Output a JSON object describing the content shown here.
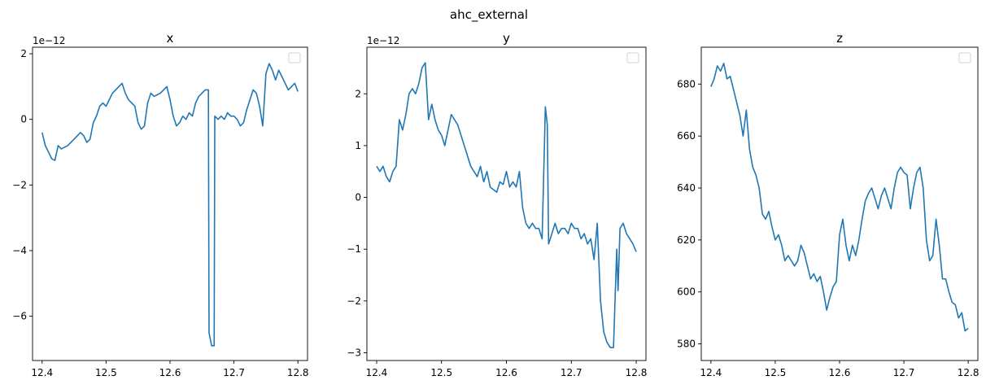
{
  "figure": {
    "suptitle": "ahc_external"
  },
  "chart_data": [
    {
      "type": "line",
      "title": "x",
      "xlabel": "",
      "ylabel": "",
      "y_offset_text": "1e−12",
      "x_ticks": [
        "12.4",
        "12.5",
        "12.6",
        "12.7",
        "12.8"
      ],
      "y_ticks": [
        "−6",
        "−4",
        "−2",
        "0",
        "2"
      ],
      "xlim": [
        12.385,
        12.815
      ],
      "ylim": [
        -7.35,
        2.2
      ],
      "legend": "top-right (empty)",
      "color": "#1f77b4",
      "series": [
        {
          "x": [
            12.4,
            12.405,
            12.41,
            12.415,
            12.42,
            12.425,
            12.43,
            12.44,
            12.45,
            12.46,
            12.465,
            12.47,
            12.475,
            12.48,
            12.485,
            12.49,
            12.495,
            12.5,
            12.505,
            12.51,
            12.515,
            12.52,
            12.525,
            12.53,
            12.535,
            12.54,
            12.545,
            12.55,
            12.555,
            12.56,
            12.565,
            12.57,
            12.575,
            12.58,
            12.585,
            12.59,
            12.595,
            12.6,
            12.605,
            12.61,
            12.615,
            12.62,
            12.625,
            12.63,
            12.635,
            12.64,
            12.645,
            12.65,
            12.655,
            12.66,
            12.661,
            12.665,
            12.669,
            12.67,
            12.675,
            12.68,
            12.685,
            12.69,
            12.695,
            12.7,
            12.705,
            12.71,
            12.715,
            12.72,
            12.725,
            12.73,
            12.735,
            12.74,
            12.745,
            12.75,
            12.755,
            12.76,
            12.765,
            12.77,
            12.775,
            12.78,
            12.785,
            12.79,
            12.795,
            12.8
          ],
          "y": [
            -0.4,
            -0.8,
            -1.0,
            -1.2,
            -1.25,
            -0.8,
            -0.9,
            -0.8,
            -0.6,
            -0.4,
            -0.5,
            -0.7,
            -0.6,
            -0.1,
            0.1,
            0.4,
            0.5,
            0.4,
            0.6,
            0.8,
            0.9,
            1.0,
            1.1,
            0.8,
            0.6,
            0.5,
            0.4,
            -0.1,
            -0.3,
            -0.2,
            0.5,
            0.8,
            0.7,
            0.75,
            0.8,
            0.9,
            1.0,
            0.6,
            0.1,
            -0.2,
            -0.1,
            0.1,
            0.0,
            0.2,
            0.1,
            0.5,
            0.7,
            0.8,
            0.9,
            0.9,
            -6.5,
            -6.9,
            -6.9,
            0.1,
            0.0,
            0.1,
            0.0,
            0.2,
            0.1,
            0.1,
            0.0,
            -0.2,
            -0.1,
            0.3,
            0.6,
            0.9,
            0.8,
            0.4,
            -0.2,
            1.4,
            1.7,
            1.5,
            1.2,
            1.5,
            1.3,
            1.1,
            0.9,
            1.0,
            1.1,
            0.85
          ]
        }
      ]
    },
    {
      "type": "line",
      "title": "y",
      "xlabel": "",
      "ylabel": "",
      "y_offset_text": "1e−12",
      "x_ticks": [
        "12.4",
        "12.5",
        "12.6",
        "12.7",
        "12.8"
      ],
      "y_ticks": [
        "−3",
        "−2",
        "−1",
        "0",
        "1",
        "2"
      ],
      "xlim": [
        12.385,
        12.815
      ],
      "ylim": [
        -3.15,
        2.9
      ],
      "legend": "top-right (empty)",
      "color": "#1f77b4",
      "series": [
        {
          "x": [
            12.4,
            12.405,
            12.41,
            12.415,
            12.42,
            12.425,
            12.43,
            12.435,
            12.44,
            12.445,
            12.45,
            12.455,
            12.46,
            12.465,
            12.47,
            12.475,
            12.48,
            12.485,
            12.49,
            12.495,
            12.5,
            12.505,
            12.51,
            12.515,
            12.52,
            12.525,
            12.53,
            12.535,
            12.54,
            12.545,
            12.55,
            12.555,
            12.56,
            12.565,
            12.57,
            12.575,
            12.58,
            12.585,
            12.59,
            12.595,
            12.6,
            12.605,
            12.61,
            12.615,
            12.62,
            12.625,
            12.63,
            12.635,
            12.64,
            12.645,
            12.65,
            12.655,
            12.66,
            12.663,
            12.665,
            12.67,
            12.675,
            12.68,
            12.685,
            12.69,
            12.695,
            12.7,
            12.705,
            12.71,
            12.715,
            12.72,
            12.725,
            12.73,
            12.735,
            12.74,
            12.745,
            12.75,
            12.755,
            12.76,
            12.765,
            12.77,
            12.772,
            12.775,
            12.78,
            12.785,
            12.79,
            12.795,
            12.8
          ],
          "y": [
            0.6,
            0.5,
            0.6,
            0.4,
            0.3,
            0.5,
            0.6,
            1.5,
            1.3,
            1.6,
            2.0,
            2.1,
            2.0,
            2.2,
            2.5,
            2.6,
            1.5,
            1.8,
            1.5,
            1.3,
            1.2,
            1.0,
            1.3,
            1.6,
            1.5,
            1.4,
            1.2,
            1.0,
            0.8,
            0.6,
            0.5,
            0.4,
            0.6,
            0.3,
            0.5,
            0.2,
            0.15,
            0.1,
            0.3,
            0.25,
            0.5,
            0.2,
            0.3,
            0.2,
            0.5,
            -0.2,
            -0.5,
            -0.6,
            -0.5,
            -0.6,
            -0.6,
            -0.8,
            1.75,
            1.4,
            -0.9,
            -0.7,
            -0.5,
            -0.7,
            -0.6,
            -0.6,
            -0.7,
            -0.5,
            -0.6,
            -0.6,
            -0.8,
            -0.7,
            -0.9,
            -0.8,
            -1.2,
            -0.5,
            -2.0,
            -2.6,
            -2.8,
            -2.9,
            -2.9,
            -1.0,
            -1.8,
            -0.6,
            -0.5,
            -0.7,
            -0.8,
            -0.9,
            -1.05
          ]
        }
      ]
    },
    {
      "type": "line",
      "title": "z",
      "xlabel": "",
      "ylabel": "",
      "y_offset_text": "",
      "x_ticks": [
        "12.4",
        "12.5",
        "12.6",
        "12.7",
        "12.8"
      ],
      "y_ticks": [
        "580",
        "600",
        "620",
        "640",
        "660",
        "680"
      ],
      "xlim": [
        12.385,
        12.815
      ],
      "ylim": [
        573.6,
        694.2
      ],
      "legend": "top-right (empty)",
      "color": "#1f77b4",
      "series": [
        {
          "x": [
            12.4,
            12.405,
            12.41,
            12.415,
            12.42,
            12.425,
            12.43,
            12.435,
            12.44,
            12.445,
            12.45,
            12.455,
            12.46,
            12.465,
            12.47,
            12.475,
            12.48,
            12.485,
            12.49,
            12.495,
            12.5,
            12.505,
            12.51,
            12.515,
            12.52,
            12.525,
            12.53,
            12.535,
            12.54,
            12.545,
            12.55,
            12.555,
            12.56,
            12.565,
            12.57,
            12.575,
            12.58,
            12.585,
            12.59,
            12.595,
            12.6,
            12.605,
            12.61,
            12.615,
            12.62,
            12.625,
            12.63,
            12.635,
            12.64,
            12.645,
            12.65,
            12.655,
            12.66,
            12.665,
            12.67,
            12.675,
            12.68,
            12.685,
            12.69,
            12.695,
            12.7,
            12.705,
            12.71,
            12.715,
            12.72,
            12.725,
            12.73,
            12.735,
            12.74,
            12.745,
            12.75,
            12.755,
            12.76,
            12.765,
            12.77,
            12.775,
            12.78,
            12.785,
            12.79,
            12.795,
            12.8
          ],
          "y": [
            679,
            682,
            687,
            685,
            688,
            682,
            683,
            678,
            673,
            668,
            660,
            670,
            655,
            648,
            645,
            640,
            630,
            628,
            631,
            625,
            620,
            622,
            618,
            612,
            614,
            612,
            610,
            612,
            618,
            615,
            610,
            605,
            607,
            604,
            606,
            600,
            593,
            598,
            602,
            604,
            622,
            628,
            618,
            612,
            618,
            614,
            620,
            628,
            635,
            638,
            640,
            636,
            632,
            637,
            640,
            636,
            632,
            640,
            646,
            648,
            646,
            645,
            632,
            640,
            646,
            648,
            640,
            620,
            612,
            614,
            628,
            618,
            605,
            605,
            600,
            596,
            595,
            590,
            592,
            585,
            586
          ]
        }
      ]
    }
  ]
}
